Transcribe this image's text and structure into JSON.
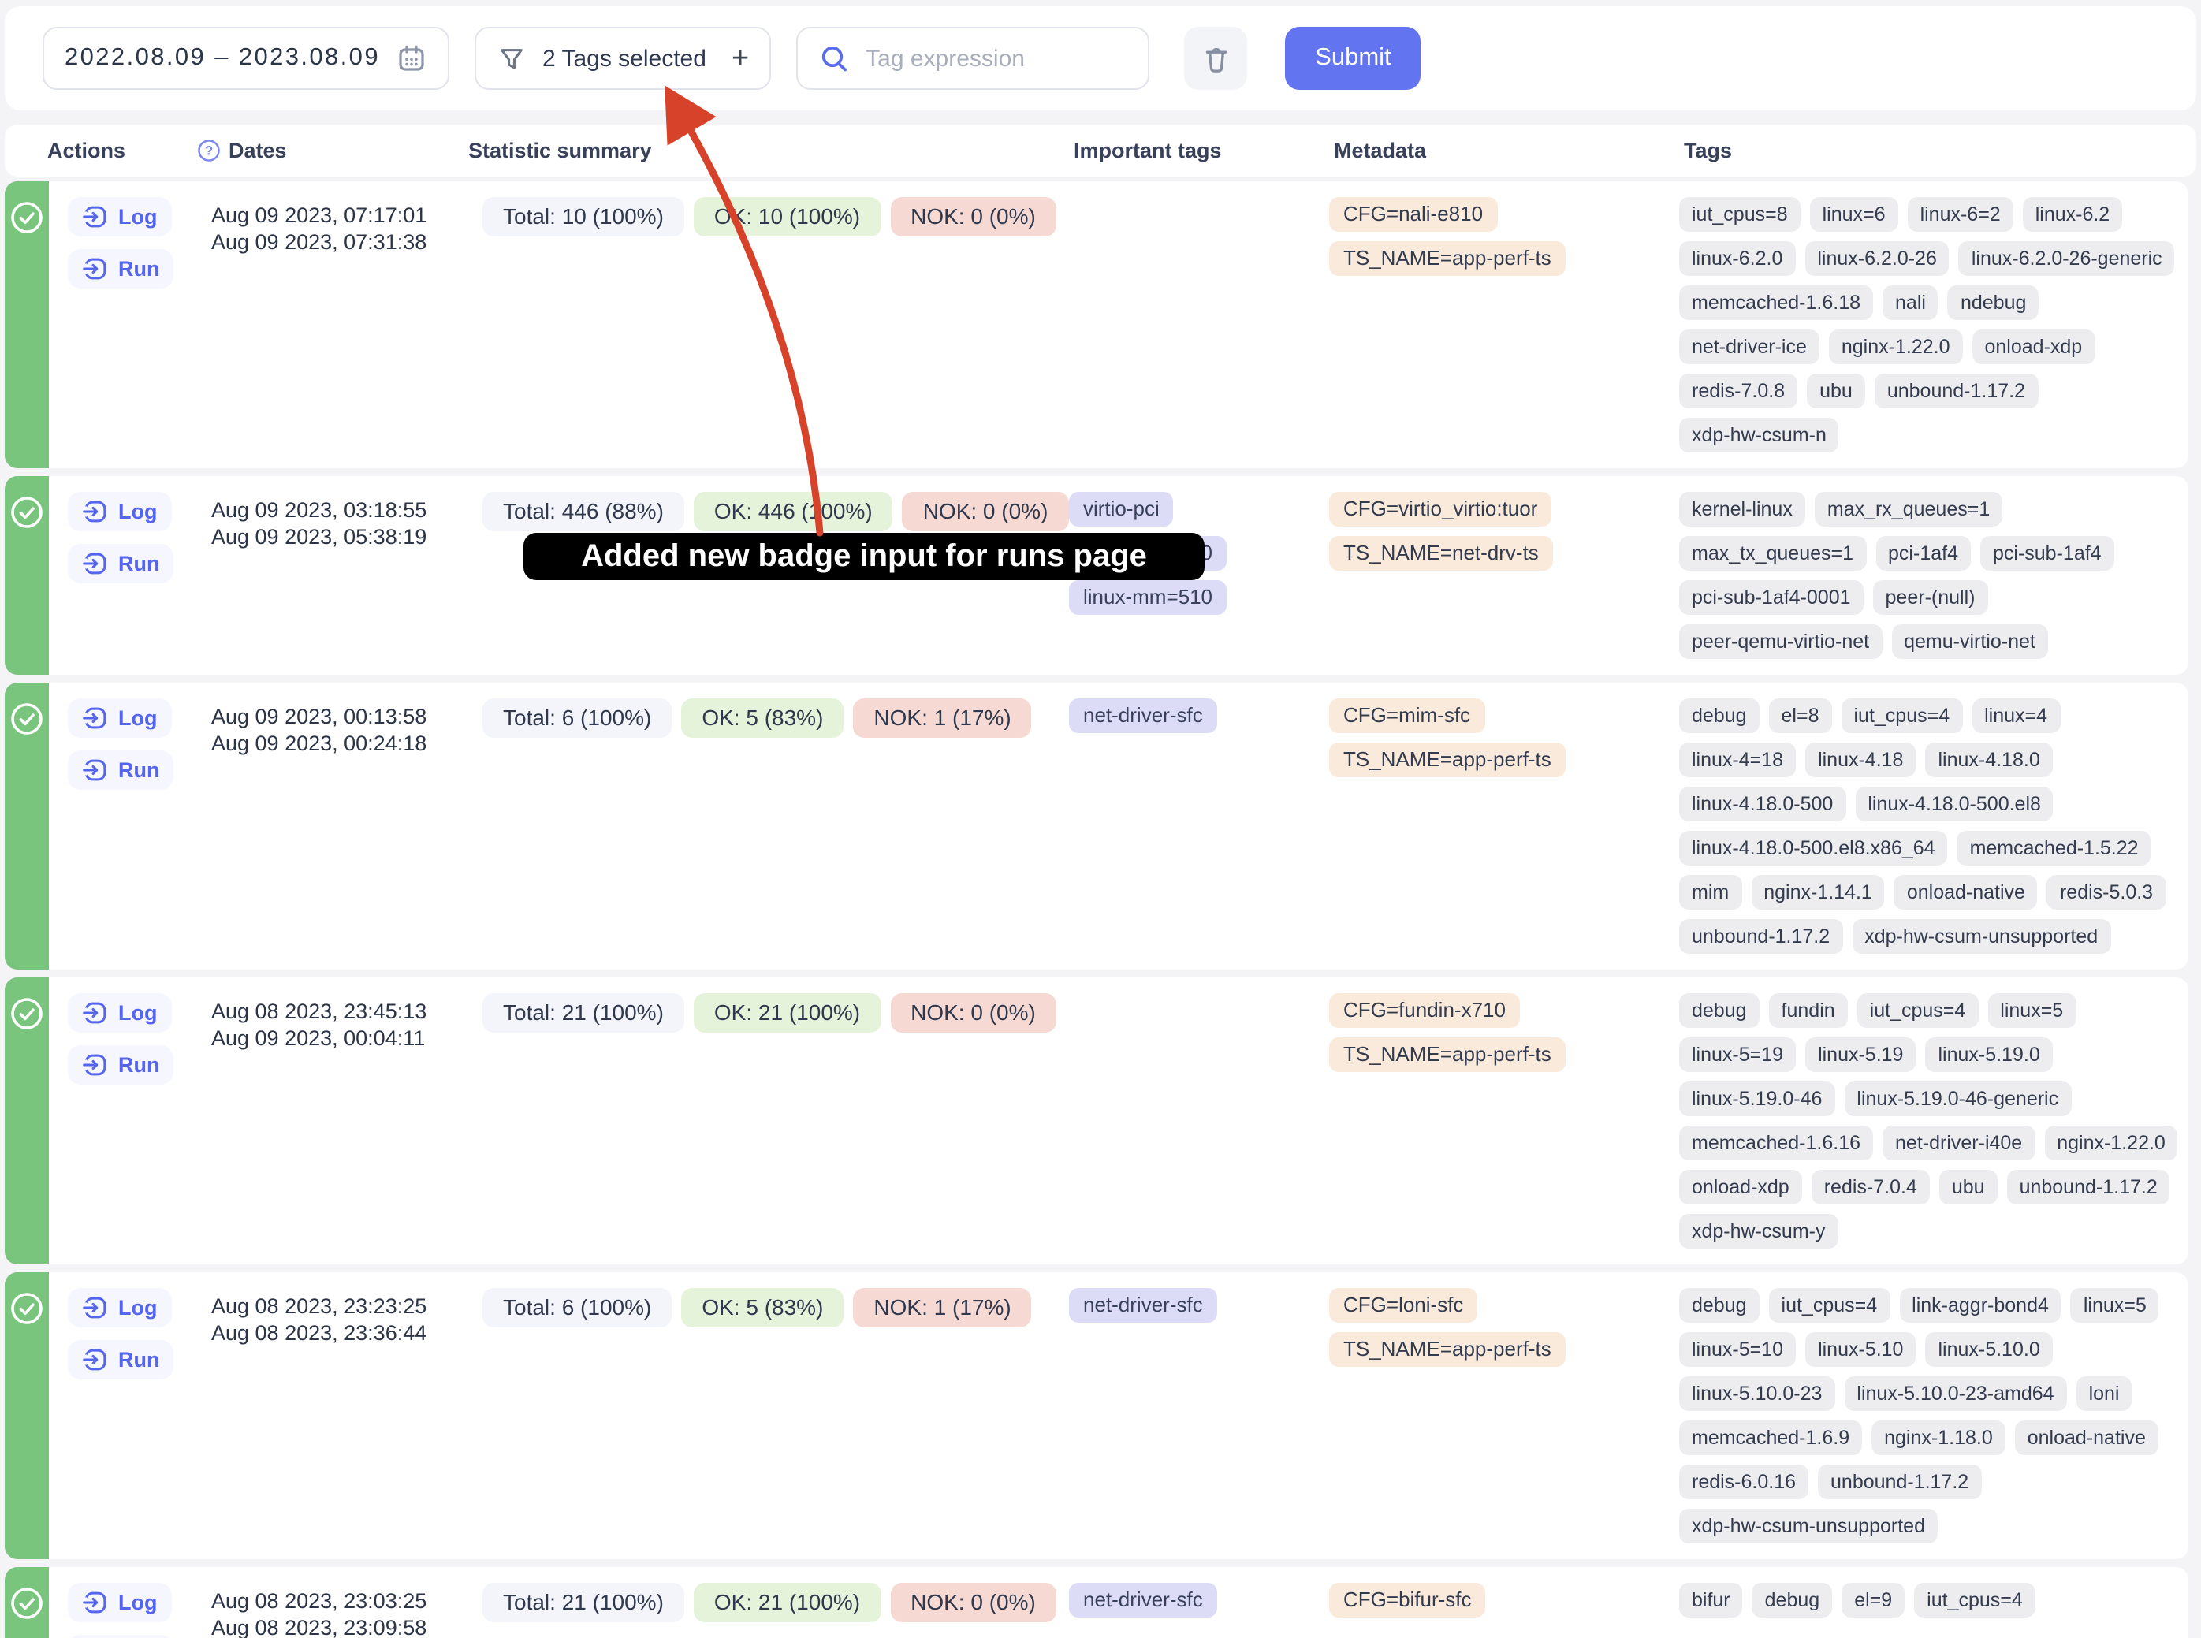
{
  "toolbar": {
    "date_range": "2022.08.09 – 2023.08.09",
    "tags_filter_label": "2 Tags selected",
    "add_symbol": "+",
    "search_placeholder": "Tag expression",
    "submit_label": "Submit"
  },
  "annotation": {
    "tooltip_text": "Added new badge input for runs page"
  },
  "columns": {
    "actions": "Actions",
    "dates": "Dates",
    "stats": "Statistic summary",
    "important": "Important tags",
    "metadata": "Metadata",
    "tags": "Tags"
  },
  "actions": {
    "log": "Log",
    "run": "Run"
  },
  "colors": {
    "accent_indigo": "#6374f0",
    "row_status_green": "#79c57e",
    "total_badge_bg": "#f3f5fa",
    "ok_badge_bg": "#e4f3d9",
    "nok_badge_bg": "#f6d9d3",
    "important_badge_bg": "#dcdcf7",
    "metadata_badge_bg": "#faeadb",
    "tag_badge_bg": "#ededef",
    "annotation_arrow_red": "#d6422a",
    "tooltip_bg": "#000000"
  },
  "rows": [
    {
      "date_start": "Aug 09 2023, 07:17:01",
      "date_end": "Aug 09 2023, 07:31:38",
      "total": "Total: 10 (100%)",
      "ok": "OK: 10 (100%)",
      "nok": "NOK: 0 (0%)",
      "important_tags": [],
      "metadata": [
        "CFG=nali-e810",
        "TS_NAME=app-perf-ts"
      ],
      "tags": [
        "iut_cpus=8",
        "linux=6",
        "linux-6=2",
        "linux-6.2",
        "linux-6.2.0",
        "linux-6.2.0-26",
        "linux-6.2.0-26-generic",
        "memcached-1.6.18",
        "nali",
        "ndebug",
        "net-driver-ice",
        "nginx-1.22.0",
        "onload-xdp",
        "redis-7.0.8",
        "ubu",
        "unbound-1.17.2",
        "xdp-hw-csum-n"
      ]
    },
    {
      "date_start": "Aug 09 2023, 03:18:55",
      "date_end": "Aug 09 2023, 05:38:19",
      "total": "Total: 446 (88%)",
      "ok": "OK: 446 (100%)",
      "nok": "NOK: 0 (0%)",
      "important_tags": [
        "virtio-pci",
        "linux-mm=500",
        "linux-mm=510"
      ],
      "metadata": [
        "CFG=virtio_virtio:tuor",
        "TS_NAME=net-drv-ts"
      ],
      "tags": [
        "kernel-linux",
        "max_rx_queues=1",
        "max_tx_queues=1",
        "pci-1af4",
        "pci-sub-1af4",
        "pci-sub-1af4-0001",
        "peer-(null)",
        "peer-qemu-virtio-net",
        "qemu-virtio-net"
      ]
    },
    {
      "date_start": "Aug 09 2023, 00:13:58",
      "date_end": "Aug 09 2023, 00:24:18",
      "total": "Total: 6 (100%)",
      "ok": "OK: 5 (83%)",
      "nok": "NOK: 1 (17%)",
      "important_tags": [
        "net-driver-sfc"
      ],
      "metadata": [
        "CFG=mim-sfc",
        "TS_NAME=app-perf-ts"
      ],
      "tags": [
        "debug",
        "el=8",
        "iut_cpus=4",
        "linux=4",
        "linux-4=18",
        "linux-4.18",
        "linux-4.18.0",
        "linux-4.18.0-500",
        "linux-4.18.0-500.el8",
        "linux-4.18.0-500.el8.x86_64",
        "memcached-1.5.22",
        "mim",
        "nginx-1.14.1",
        "onload-native",
        "redis-5.0.3",
        "unbound-1.17.2",
        "xdp-hw-csum-unsupported"
      ]
    },
    {
      "date_start": "Aug 08 2023, 23:45:13",
      "date_end": "Aug 09 2023, 00:04:11",
      "total": "Total: 21 (100%)",
      "ok": "OK: 21 (100%)",
      "nok": "NOK: 0 (0%)",
      "important_tags": [],
      "metadata": [
        "CFG=fundin-x710",
        "TS_NAME=app-perf-ts"
      ],
      "tags": [
        "debug",
        "fundin",
        "iut_cpus=4",
        "linux=5",
        "linux-5=19",
        "linux-5.19",
        "linux-5.19.0",
        "linux-5.19.0-46",
        "linux-5.19.0-46-generic",
        "memcached-1.6.16",
        "net-driver-i40e",
        "nginx-1.22.0",
        "onload-xdp",
        "redis-7.0.4",
        "ubu",
        "unbound-1.17.2",
        "xdp-hw-csum-y"
      ]
    },
    {
      "date_start": "Aug 08 2023, 23:23:25",
      "date_end": "Aug 08 2023, 23:36:44",
      "total": "Total: 6 (100%)",
      "ok": "OK: 5 (83%)",
      "nok": "NOK: 1 (17%)",
      "important_tags": [
        "net-driver-sfc"
      ],
      "metadata": [
        "CFG=loni-sfc",
        "TS_NAME=app-perf-ts"
      ],
      "tags": [
        "debug",
        "iut_cpus=4",
        "link-aggr-bond4",
        "linux=5",
        "linux-5=10",
        "linux-5.10",
        "linux-5.10.0",
        "linux-5.10.0-23",
        "linux-5.10.0-23-amd64",
        "loni",
        "memcached-1.6.9",
        "nginx-1.18.0",
        "onload-native",
        "redis-6.0.16",
        "unbound-1.17.2",
        "xdp-hw-csum-unsupported"
      ]
    },
    {
      "date_start": "Aug 08 2023, 23:03:25",
      "date_end": "Aug 08 2023, 23:09:58",
      "total": "Total: 21 (100%)",
      "ok": "OK: 21 (100%)",
      "nok": "NOK: 0 (0%)",
      "important_tags": [
        "net-driver-sfc"
      ],
      "metadata": [
        "CFG=bifur-sfc"
      ],
      "tags": [
        "bifur",
        "debug",
        "el=9",
        "iut_cpus=4"
      ]
    }
  ]
}
